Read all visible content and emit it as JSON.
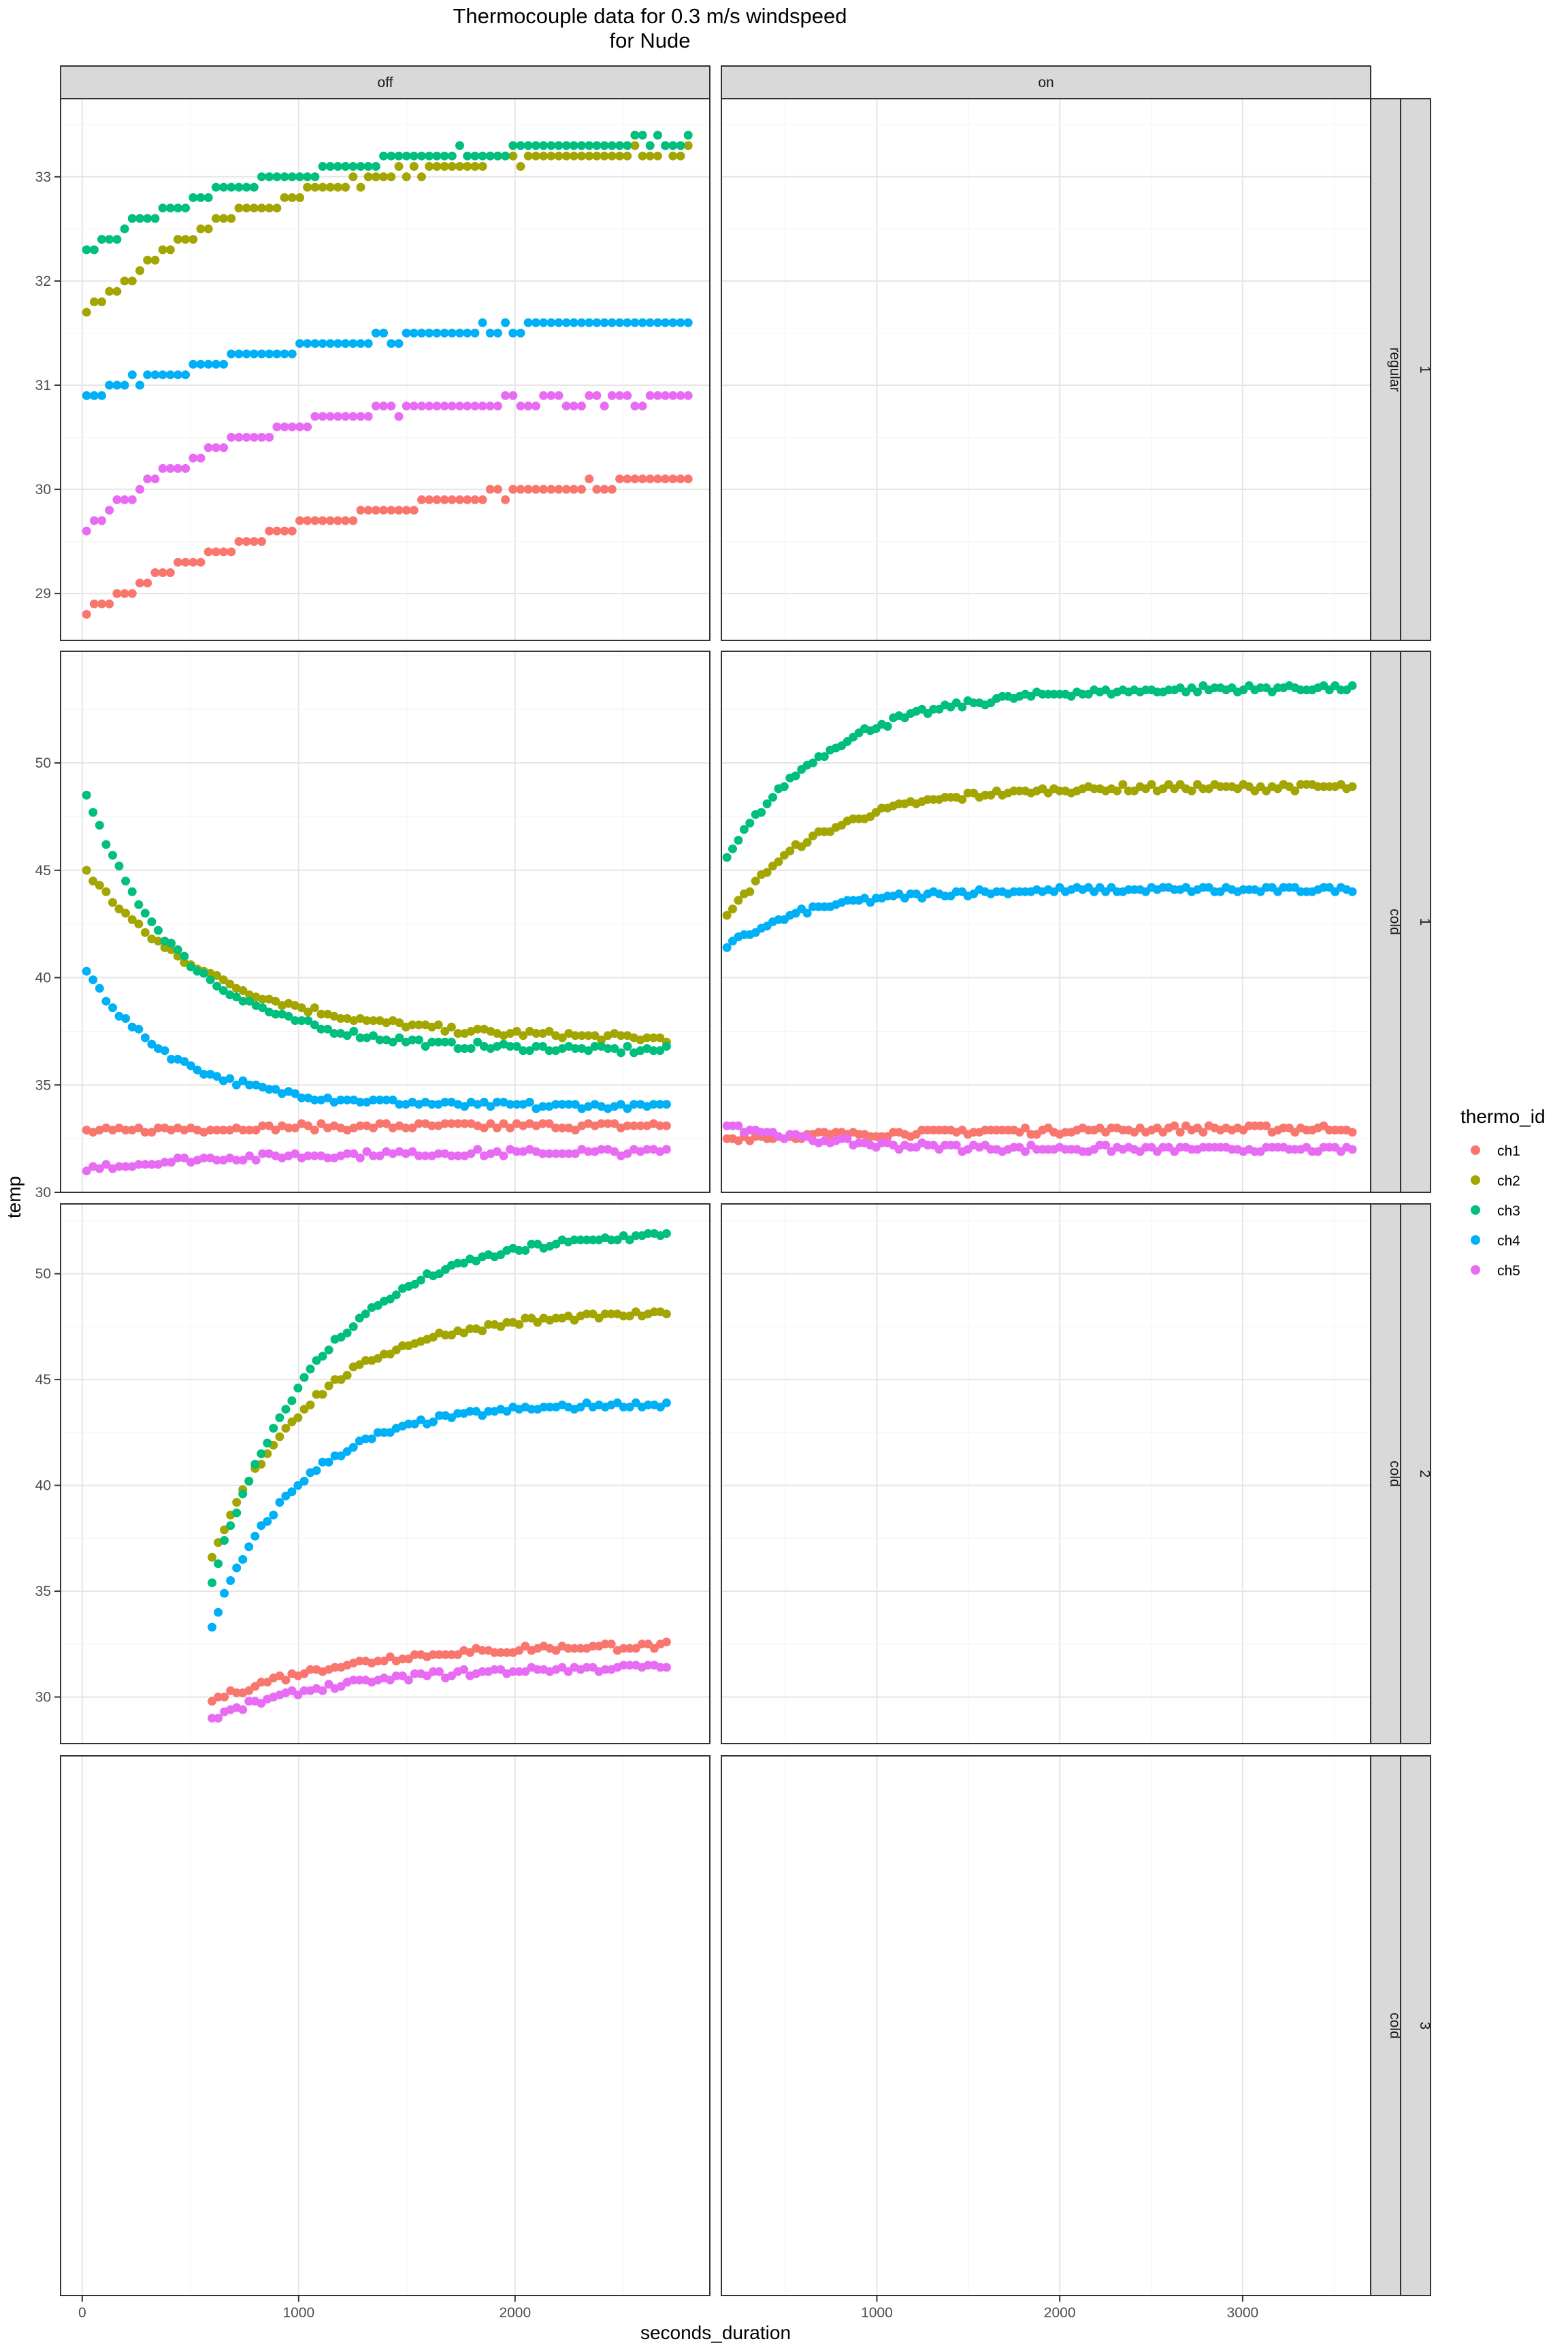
{
  "chart_data": {
    "type": "scatter",
    "title": "Thermocouple data for 0.3 m/s windspeed",
    "subtitle": "for Nude",
    "xlabel": "seconds_duration",
    "ylabel": "temp",
    "legend": {
      "title": "thermo_id",
      "placement": "right",
      "entries": [
        {
          "name": "ch1",
          "color": "#F8766D"
        },
        {
          "name": "ch2",
          "color": "#A3A500"
        },
        {
          "name": "ch3",
          "color": "#00BF7D"
        },
        {
          "name": "ch4",
          "color": "#00B0F6"
        },
        {
          "name": "ch5",
          "color": "#E76BF3"
        }
      ]
    },
    "facet_columns": [
      "off",
      "on"
    ],
    "facet_rows": [
      {
        "strip_inner": "regular",
        "strip_outer": "1"
      },
      {
        "strip_inner": "cold",
        "strip_outer": "1"
      },
      {
        "strip_inner": "cold",
        "strip_outer": "2"
      },
      {
        "strip_inner": "cold",
        "strip_outer": "3"
      }
    ],
    "x_axes": {
      "off": {
        "xlim": [
          -100,
          2900
        ],
        "ticks": [
          0,
          1000,
          2000
        ],
        "tick_labels": [
          "0",
          "1000",
          "2000"
        ]
      },
      "on": {
        "xlim": [
          150,
          3700
        ],
        "ticks": [
          1000,
          2000,
          3000
        ],
        "tick_labels": [
          "1000",
          "2000",
          "3000"
        ]
      }
    },
    "y_axes": [
      {
        "ylim": [
          28.55,
          33.75
        ],
        "ticks": [
          29,
          30,
          31,
          32,
          33
        ],
        "tick_labels": [
          "29",
          "30",
          "31",
          "32",
          "33"
        ]
      },
      {
        "ylim": [
          30.0,
          55.2
        ],
        "ticks": [
          30,
          35,
          40,
          45,
          50
        ],
        "tick_labels": [
          "30",
          "35",
          "40",
          "45",
          "50"
        ]
      },
      {
        "ylim": [
          27.8,
          53.3
        ],
        "ticks": [
          30,
          35,
          40,
          45,
          50
        ],
        "tick_labels": [
          "30",
          "35",
          "40",
          "45",
          "50"
        ]
      },
      {
        "ylim": [
          27.8,
          53.3
        ],
        "ticks": [],
        "tick_labels": []
      }
    ],
    "grid": true,
    "panels": [
      {
        "row": 0,
        "col": "off",
        "series": [
          {
            "name": "ch1",
            "x_range": [
              20,
              2800
            ],
            "y_start": 28.8,
            "y_end": 30.2,
            "tau": 1100,
            "n": 80
          },
          {
            "name": "ch2",
            "x_range": [
              20,
              2800
            ],
            "y_start": 31.7,
            "y_end": 33.3,
            "tau": 800,
            "n": 80
          },
          {
            "name": "ch3",
            "x_range": [
              20,
              2800
            ],
            "y_start": 32.3,
            "y_end": 33.4,
            "tau": 900,
            "n": 80
          },
          {
            "name": "ch4",
            "x_range": [
              20,
              2800
            ],
            "y_start": 30.9,
            "y_end": 31.7,
            "tau": 1200,
            "n": 80
          },
          {
            "name": "ch5",
            "x_range": [
              20,
              2800
            ],
            "y_start": 29.6,
            "y_end": 30.9,
            "tau": 650,
            "n": 80
          }
        ]
      },
      {
        "row": 1,
        "col": "off",
        "series": [
          {
            "name": "ch1",
            "x_range": [
              20,
              2700
            ],
            "y_start": 32.8,
            "y_end": 33.1,
            "tau": 600,
            "n": 90
          },
          {
            "name": "ch2",
            "x_range": [
              20,
              2700
            ],
            "y_start": 45.0,
            "y_end": 37.1,
            "tau": 600,
            "n": 90
          },
          {
            "name": "ch3",
            "x_range": [
              20,
              2700
            ],
            "y_start": 48.4,
            "y_end": 36.6,
            "tau": 450,
            "n": 90
          },
          {
            "name": "ch4",
            "x_range": [
              20,
              2700
            ],
            "y_start": 40.3,
            "y_end": 34.0,
            "tau": 400,
            "n": 90
          },
          {
            "name": "ch5",
            "x_range": [
              20,
              2700
            ],
            "y_start": 31.1,
            "y_end": 31.9,
            "tau": 700,
            "n": 90
          }
        ]
      },
      {
        "row": 1,
        "col": "on",
        "series": [
          {
            "name": "ch1",
            "x_range": [
              180,
              3600
            ],
            "y_start": 32.5,
            "y_end": 33.0,
            "tau": 1200,
            "n": 110
          },
          {
            "name": "ch2",
            "x_range": [
              180,
              3600
            ],
            "y_start": 42.8,
            "y_end": 48.9,
            "tau": 500,
            "n": 110
          },
          {
            "name": "ch3",
            "x_range": [
              180,
              3600
            ],
            "y_start": 45.5,
            "y_end": 53.5,
            "tau": 550,
            "n": 110
          },
          {
            "name": "ch4",
            "x_range": [
              180,
              3600
            ],
            "y_start": 41.4,
            "y_end": 44.1,
            "tau": 450,
            "n": 110
          },
          {
            "name": "ch5",
            "x_range": [
              180,
              3600
            ],
            "y_start": 33.2,
            "y_end": 32.0,
            "tau": 500,
            "n": 110
          }
        ]
      },
      {
        "row": 2,
        "col": "off",
        "series": [
          {
            "name": "ch1",
            "x_range": [
              600,
              2700
            ],
            "y_start": 29.8,
            "y_end": 32.5,
            "tau": 600,
            "n": 75
          },
          {
            "name": "ch2",
            "x_range": [
              600,
              2700
            ],
            "y_start": 36.5,
            "y_end": 48.2,
            "tau": 450,
            "n": 75
          },
          {
            "name": "ch3",
            "x_range": [
              600,
              2700
            ],
            "y_start": 35.5,
            "y_end": 52.1,
            "tau": 500,
            "n": 75
          },
          {
            "name": "ch4",
            "x_range": [
              600,
              2700
            ],
            "y_start": 33.4,
            "y_end": 43.9,
            "tau": 400,
            "n": 75
          },
          {
            "name": "ch5",
            "x_range": [
              600,
              2700
            ],
            "y_start": 29.0,
            "y_end": 31.5,
            "tau": 600,
            "n": 75
          }
        ]
      },
      {
        "row": 2,
        "col": "on",
        "series": []
      },
      {
        "row": 3,
        "col": "off",
        "series": []
      },
      {
        "row": 3,
        "col": "on",
        "series": []
      }
    ]
  }
}
